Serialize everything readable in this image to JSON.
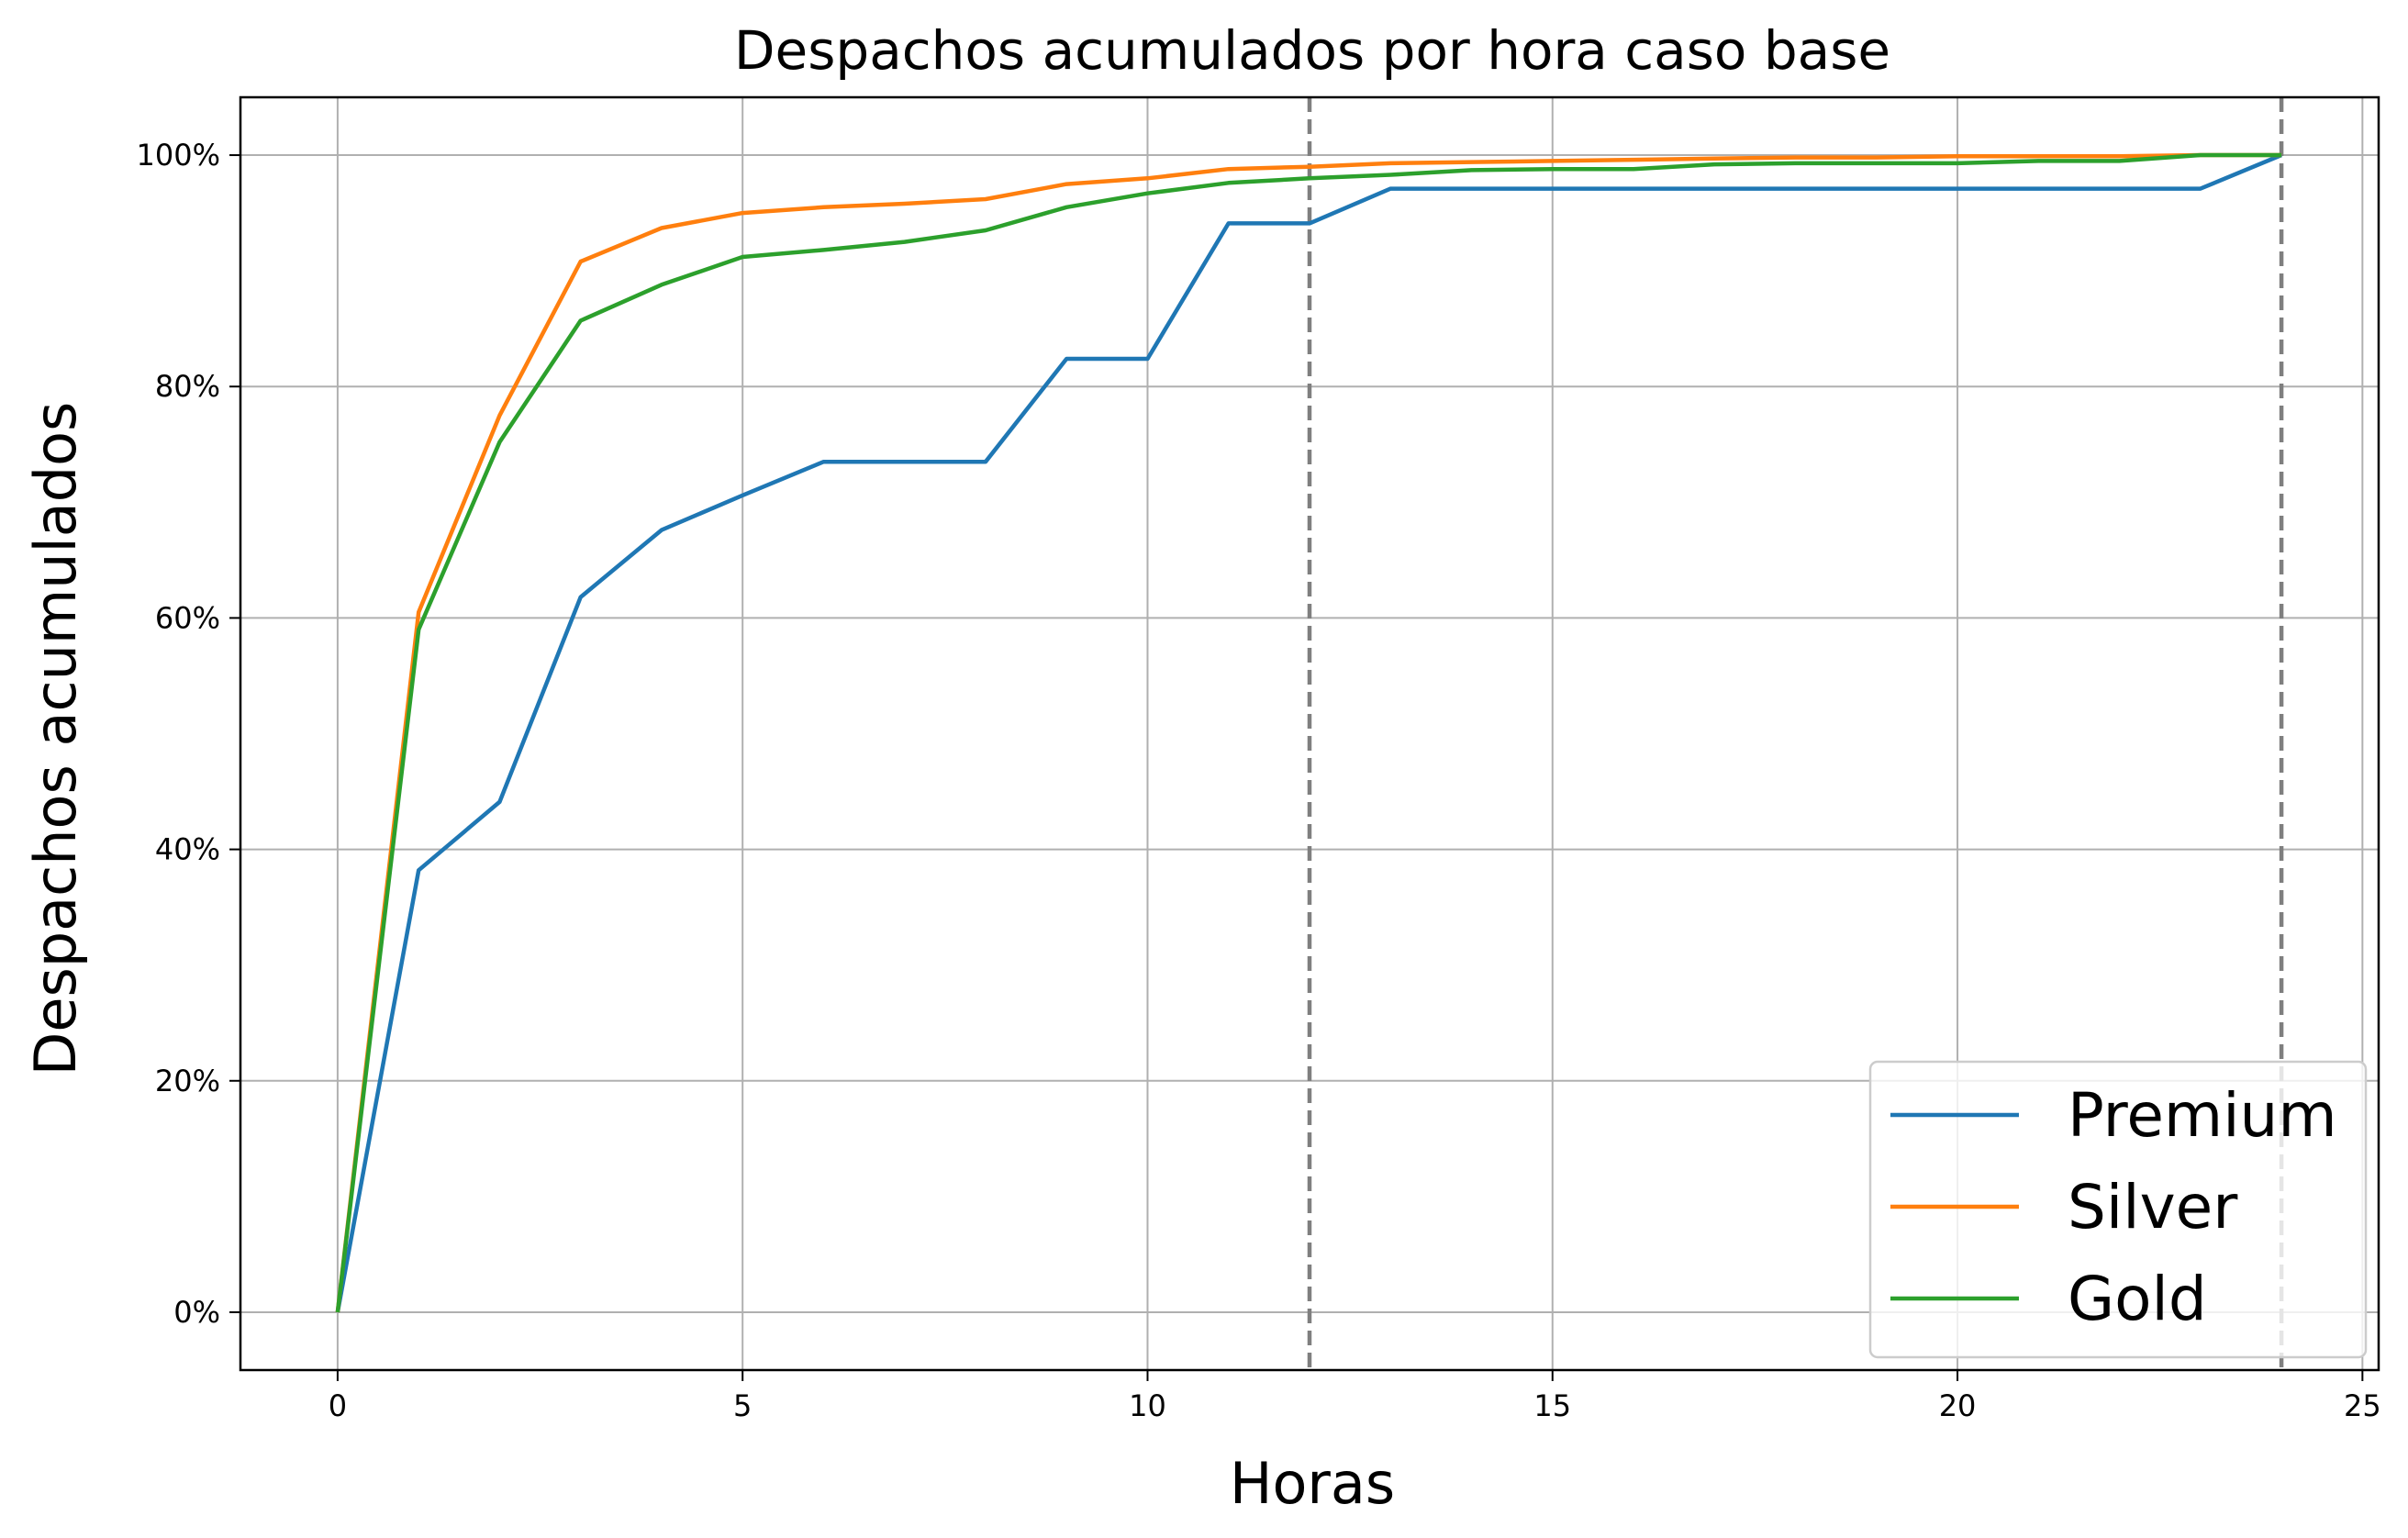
{
  "chart_data": {
    "type": "line",
    "title": "Despachos acumulados por hora caso base",
    "xlabel": "Horas",
    "ylabel": "Despachos acumulados",
    "xlim": [
      -1.2,
      25.2
    ],
    "ylim": [
      -0.05,
      1.05
    ],
    "x_ticks": [
      0,
      5,
      10,
      15,
      20,
      25
    ],
    "x_tick_labels": [
      "0",
      "5",
      "10",
      "15",
      "20",
      "25"
    ],
    "y_ticks": [
      0,
      0.2,
      0.4,
      0.6,
      0.8,
      1.0
    ],
    "y_tick_labels": [
      "0%",
      "20%",
      "40%",
      "60%",
      "80%",
      "100%"
    ],
    "grid": true,
    "legend_position": "bottom-right",
    "vlines": [
      12,
      24
    ],
    "x": [
      0,
      1,
      2,
      3,
      4,
      5,
      6,
      7,
      8,
      9,
      10,
      11,
      12,
      13,
      14,
      15,
      16,
      17,
      18,
      19,
      20,
      21,
      22,
      23,
      24
    ],
    "series": [
      {
        "name": "Premium",
        "color": "#1f77b4",
        "values": [
          0,
          0.382,
          0.441,
          0.618,
          0.676,
          0.706,
          0.735,
          0.735,
          0.735,
          0.824,
          0.824,
          0.941,
          0.941,
          0.971,
          0.971,
          0.971,
          0.971,
          0.971,
          0.971,
          0.971,
          0.971,
          0.971,
          0.971,
          0.971,
          1.0
        ]
      },
      {
        "name": "Silver",
        "color": "#ff7f0e",
        "values": [
          0,
          0.605,
          0.775,
          0.908,
          0.937,
          0.95,
          0.955,
          0.958,
          0.962,
          0.975,
          0.98,
          0.988,
          0.99,
          0.993,
          0.994,
          0.995,
          0.996,
          0.997,
          0.998,
          0.998,
          0.999,
          0.999,
          0.999,
          1.0,
          1.0
        ]
      },
      {
        "name": "Gold",
        "color": "#2ca02c",
        "values": [
          0,
          0.59,
          0.752,
          0.857,
          0.888,
          0.912,
          0.918,
          0.925,
          0.935,
          0.955,
          0.967,
          0.976,
          0.98,
          0.983,
          0.987,
          0.988,
          0.988,
          0.992,
          0.993,
          0.993,
          0.993,
          0.995,
          0.995,
          1.0,
          1.0
        ]
      }
    ]
  }
}
